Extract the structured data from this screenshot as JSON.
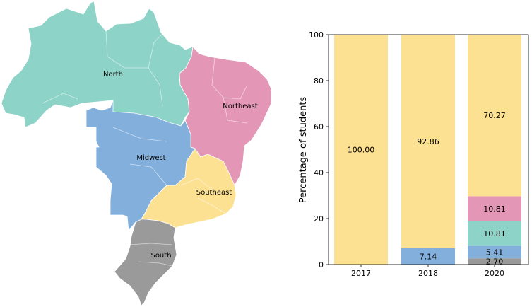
{
  "map": {
    "regions": [
      {
        "name": "North",
        "color": "#8dd3c7"
      },
      {
        "name": "Northeast",
        "color": "#e396b5"
      },
      {
        "name": "Midwest",
        "color": "#83afdc"
      },
      {
        "name": "Southeast",
        "color": "#fde192"
      },
      {
        "name": "South",
        "color": "#9a9a9a"
      }
    ],
    "border_color": "#ffffff"
  },
  "chart_data": {
    "type": "bar",
    "stacked": true,
    "title": "",
    "xlabel": "",
    "ylabel": "Percentage of students",
    "ylim": [
      0,
      100
    ],
    "yticks": [
      0,
      20,
      40,
      60,
      80,
      100
    ],
    "grid": false,
    "legend": "none",
    "categories": [
      "2017",
      "2018",
      "2020"
    ],
    "series": [
      {
        "region": "South",
        "color": "#9a9a9a",
        "values": [
          0,
          0,
          2.7
        ],
        "labels": [
          "",
          "",
          "2.70"
        ]
      },
      {
        "region": "Midwest",
        "color": "#83afdc",
        "values": [
          0,
          7.14,
          5.41
        ],
        "labels": [
          "",
          "7.14",
          "5.41"
        ]
      },
      {
        "region": "North",
        "color": "#8dd3c7",
        "values": [
          0,
          0,
          10.81
        ],
        "labels": [
          "",
          "",
          "10.81"
        ]
      },
      {
        "region": "Northeast",
        "color": "#e396b5",
        "values": [
          0,
          0,
          10.81
        ],
        "labels": [
          "",
          "",
          "10.81"
        ]
      },
      {
        "region": "Southeast",
        "color": "#fde192",
        "values": [
          100.0,
          92.86,
          70.27
        ],
        "labels": [
          "100.00",
          "92.86",
          "70.27"
        ]
      }
    ]
  }
}
